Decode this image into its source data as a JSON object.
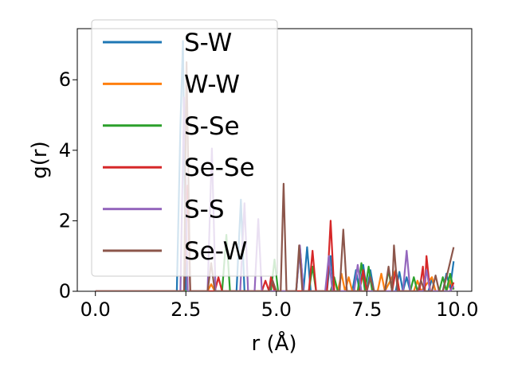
{
  "chart_data": {
    "type": "line",
    "title": "",
    "xlabel": "r (Å)",
    "ylabel": "g(r)",
    "xlim": [
      -0.5,
      10.4
    ],
    "ylim": [
      0,
      7.45
    ],
    "xticks": [
      "0.0",
      "2.5",
      "5.0",
      "7.5",
      "10.0"
    ],
    "yticks": [
      "0",
      "2",
      "4",
      "6"
    ],
    "grid": false,
    "legend_position": "top-left",
    "series": [
      {
        "name": "S-W",
        "color": "#1f77b4",
        "points": [
          [
            0,
            0
          ],
          [
            2.25,
            0
          ],
          [
            2.35,
            4.7
          ],
          [
            2.42,
            7.1
          ],
          [
            2.5,
            0
          ],
          [
            3.0,
            0
          ],
          [
            3.9,
            0
          ],
          [
            4.02,
            2.6
          ],
          [
            4.12,
            0
          ],
          [
            5.55,
            0
          ],
          [
            5.65,
            1.25
          ],
          [
            5.75,
            0
          ],
          [
            5.85,
            1.25
          ],
          [
            5.95,
            0
          ],
          [
            6.4,
            0
          ],
          [
            6.5,
            1.0
          ],
          [
            6.6,
            0
          ],
          [
            7.1,
            0
          ],
          [
            7.2,
            0.6
          ],
          [
            7.3,
            0
          ],
          [
            7.4,
            0.75
          ],
          [
            7.5,
            0
          ],
          [
            7.6,
            0.6
          ],
          [
            7.7,
            0
          ],
          [
            8.3,
            0
          ],
          [
            8.4,
            0.55
          ],
          [
            8.5,
            0
          ],
          [
            8.6,
            0.4
          ],
          [
            8.7,
            0
          ],
          [
            9.2,
            0
          ],
          [
            9.3,
            0.35
          ],
          [
            9.4,
            0
          ],
          [
            9.6,
            0
          ],
          [
            9.7,
            0.5
          ],
          [
            9.8,
            0.1
          ],
          [
            9.9,
            0.85
          ]
        ]
      },
      {
        "name": "W-W",
        "color": "#ff7f0e",
        "points": [
          [
            0,
            0
          ],
          [
            3.1,
            0
          ],
          [
            3.2,
            0.2
          ],
          [
            3.3,
            0
          ],
          [
            6.5,
            0
          ],
          [
            6.6,
            0.3
          ],
          [
            6.7,
            0
          ],
          [
            6.8,
            0.5
          ],
          [
            6.9,
            0
          ],
          [
            7.0,
            0.4
          ],
          [
            7.1,
            0
          ],
          [
            7.8,
            0
          ],
          [
            7.9,
            0.5
          ],
          [
            8.0,
            0
          ],
          [
            8.3,
            0.6
          ],
          [
            8.4,
            0
          ],
          [
            8.8,
            0
          ],
          [
            8.9,
            0.3
          ],
          [
            9.0,
            0
          ],
          [
            9.3,
            0.4
          ],
          [
            9.4,
            0
          ],
          [
            9.7,
            0
          ],
          [
            9.8,
            0.3
          ],
          [
            9.9,
            0.05
          ]
        ]
      },
      {
        "name": "S-Se",
        "color": "#2ca02c",
        "points": [
          [
            0,
            0
          ],
          [
            3.5,
            0
          ],
          [
            3.62,
            1.6
          ],
          [
            3.72,
            0
          ],
          [
            4.85,
            0
          ],
          [
            4.95,
            0.9
          ],
          [
            5.05,
            0
          ],
          [
            5.9,
            0
          ],
          [
            6.0,
            0.7
          ],
          [
            6.1,
            0
          ],
          [
            6.5,
            0
          ],
          [
            6.6,
            0.4
          ],
          [
            6.7,
            0
          ],
          [
            7.25,
            0
          ],
          [
            7.35,
            0.8
          ],
          [
            7.45,
            0
          ],
          [
            7.55,
            0.7
          ],
          [
            7.65,
            0
          ],
          [
            8.0,
            0
          ],
          [
            8.1,
            0.6
          ],
          [
            8.2,
            0
          ],
          [
            8.7,
            0
          ],
          [
            8.8,
            0.4
          ],
          [
            8.9,
            0
          ],
          [
            9.5,
            0
          ],
          [
            9.6,
            0.4
          ],
          [
            9.7,
            0
          ],
          [
            9.8,
            0.5
          ],
          [
            9.9,
            0.05
          ]
        ]
      },
      {
        "name": "Se-Se",
        "color": "#d62728",
        "points": [
          [
            0,
            0
          ],
          [
            2.45,
            0
          ],
          [
            2.55,
            3.0
          ],
          [
            2.62,
            0
          ],
          [
            3.3,
            0
          ],
          [
            3.4,
            0.4
          ],
          [
            3.5,
            0
          ],
          [
            4.6,
            0
          ],
          [
            4.7,
            0.3
          ],
          [
            4.8,
            0
          ],
          [
            4.85,
            0.4
          ],
          [
            4.95,
            0
          ],
          [
            5.9,
            0
          ],
          [
            6.0,
            1.15
          ],
          [
            6.1,
            0
          ],
          [
            6.4,
            0
          ],
          [
            6.5,
            2.0
          ],
          [
            6.6,
            0
          ],
          [
            7.3,
            0
          ],
          [
            7.4,
            0.6
          ],
          [
            7.5,
            0
          ],
          [
            8.2,
            0
          ],
          [
            8.3,
            0.6
          ],
          [
            8.4,
            0
          ],
          [
            8.95,
            0
          ],
          [
            9.05,
            0.7
          ],
          [
            9.1,
            0
          ],
          [
            9.15,
            1.0
          ],
          [
            9.25,
            0
          ],
          [
            9.8,
            0
          ],
          [
            9.9,
            0.25
          ]
        ]
      },
      {
        "name": "S-S",
        "color": "#9467bd",
        "points": [
          [
            0,
            0
          ],
          [
            2.35,
            0
          ],
          [
            2.45,
            5.5
          ],
          [
            2.55,
            0
          ],
          [
            3.1,
            0
          ],
          [
            3.22,
            4.05
          ],
          [
            3.32,
            0
          ],
          [
            4.0,
            0
          ],
          [
            4.12,
            2.5
          ],
          [
            4.22,
            0
          ],
          [
            4.4,
            0
          ],
          [
            4.5,
            2.05
          ],
          [
            4.6,
            0
          ],
          [
            5.55,
            0
          ],
          [
            5.65,
            1.3
          ],
          [
            5.75,
            0
          ],
          [
            6.35,
            0
          ],
          [
            6.45,
            1.0
          ],
          [
            6.55,
            0
          ],
          [
            7.15,
            0
          ],
          [
            7.25,
            0.75
          ],
          [
            7.35,
            0
          ],
          [
            8.5,
            0
          ],
          [
            8.6,
            1.15
          ],
          [
            8.7,
            0
          ],
          [
            9.05,
            0
          ],
          [
            9.15,
            0.6
          ],
          [
            9.25,
            0
          ],
          [
            9.8,
            0
          ],
          [
            9.9,
            0.15
          ]
        ]
      },
      {
        "name": "Se-W",
        "color": "#8c564b",
        "points": [
          [
            0,
            0
          ],
          [
            2.45,
            0
          ],
          [
            2.52,
            6.5
          ],
          [
            2.62,
            0
          ],
          [
            3.1,
            0
          ],
          [
            3.2,
            0.8
          ],
          [
            3.3,
            0
          ],
          [
            4.8,
            0
          ],
          [
            4.9,
            0.3
          ],
          [
            5.0,
            0
          ],
          [
            5.12,
            0
          ],
          [
            5.2,
            3.05
          ],
          [
            5.28,
            0
          ],
          [
            5.55,
            0
          ],
          [
            5.63,
            1.3
          ],
          [
            5.72,
            0
          ],
          [
            6.75,
            0
          ],
          [
            6.85,
            1.75
          ],
          [
            6.95,
            0
          ],
          [
            7.5,
            0
          ],
          [
            7.6,
            0.4
          ],
          [
            7.7,
            0
          ],
          [
            8.0,
            0
          ],
          [
            8.1,
            0.7
          ],
          [
            8.2,
            0
          ],
          [
            8.25,
            1.3
          ],
          [
            8.35,
            0
          ],
          [
            8.9,
            0
          ],
          [
            9.0,
            0.3
          ],
          [
            9.1,
            0
          ],
          [
            9.3,
            0
          ],
          [
            9.4,
            0.45
          ],
          [
            9.5,
            0
          ],
          [
            9.6,
            0
          ],
          [
            9.75,
            0.6
          ],
          [
            9.9,
            1.25
          ]
        ]
      }
    ]
  }
}
